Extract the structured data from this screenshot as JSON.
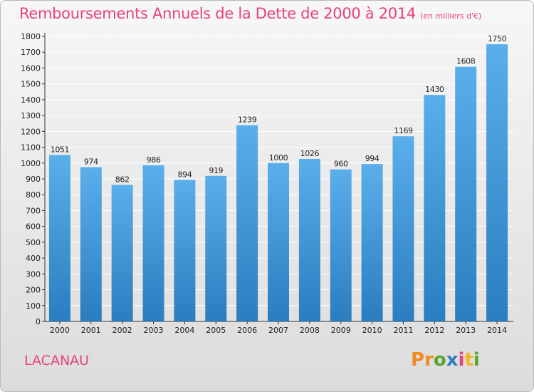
{
  "header": {
    "title": "Remboursements Annuels de la Dette de 2000 à 2014",
    "unit": "(en milliers d'€)"
  },
  "footer": {
    "commune": "LACANAU",
    "logo": [
      "P",
      "r",
      "o",
      "x",
      "i",
      "t",
      "i"
    ]
  },
  "colors": {
    "title": "#e8427a",
    "bar_top": "#5aaeea",
    "bar_bottom": "#2a7ec0",
    "grid": "#ffffff",
    "logo": [
      "#f08a1c",
      "#f08a1c",
      "#5aa62a",
      "#2a7ec0",
      "#e8427a",
      "#f0b81c",
      "#5aa62a"
    ]
  },
  "chart_data": {
    "type": "bar",
    "categories": [
      "2000",
      "2001",
      "2002",
      "2003",
      "2004",
      "2005",
      "2006",
      "2007",
      "2008",
      "2009",
      "2010",
      "2011",
      "2012",
      "2013",
      "2014"
    ],
    "values": [
      1051,
      974,
      862,
      986,
      894,
      919,
      1239,
      1000,
      1026,
      960,
      994,
      1169,
      1430,
      1608,
      1750
    ],
    "ylim": [
      0,
      1800
    ],
    "ytick_step": 100,
    "grid": true
  }
}
